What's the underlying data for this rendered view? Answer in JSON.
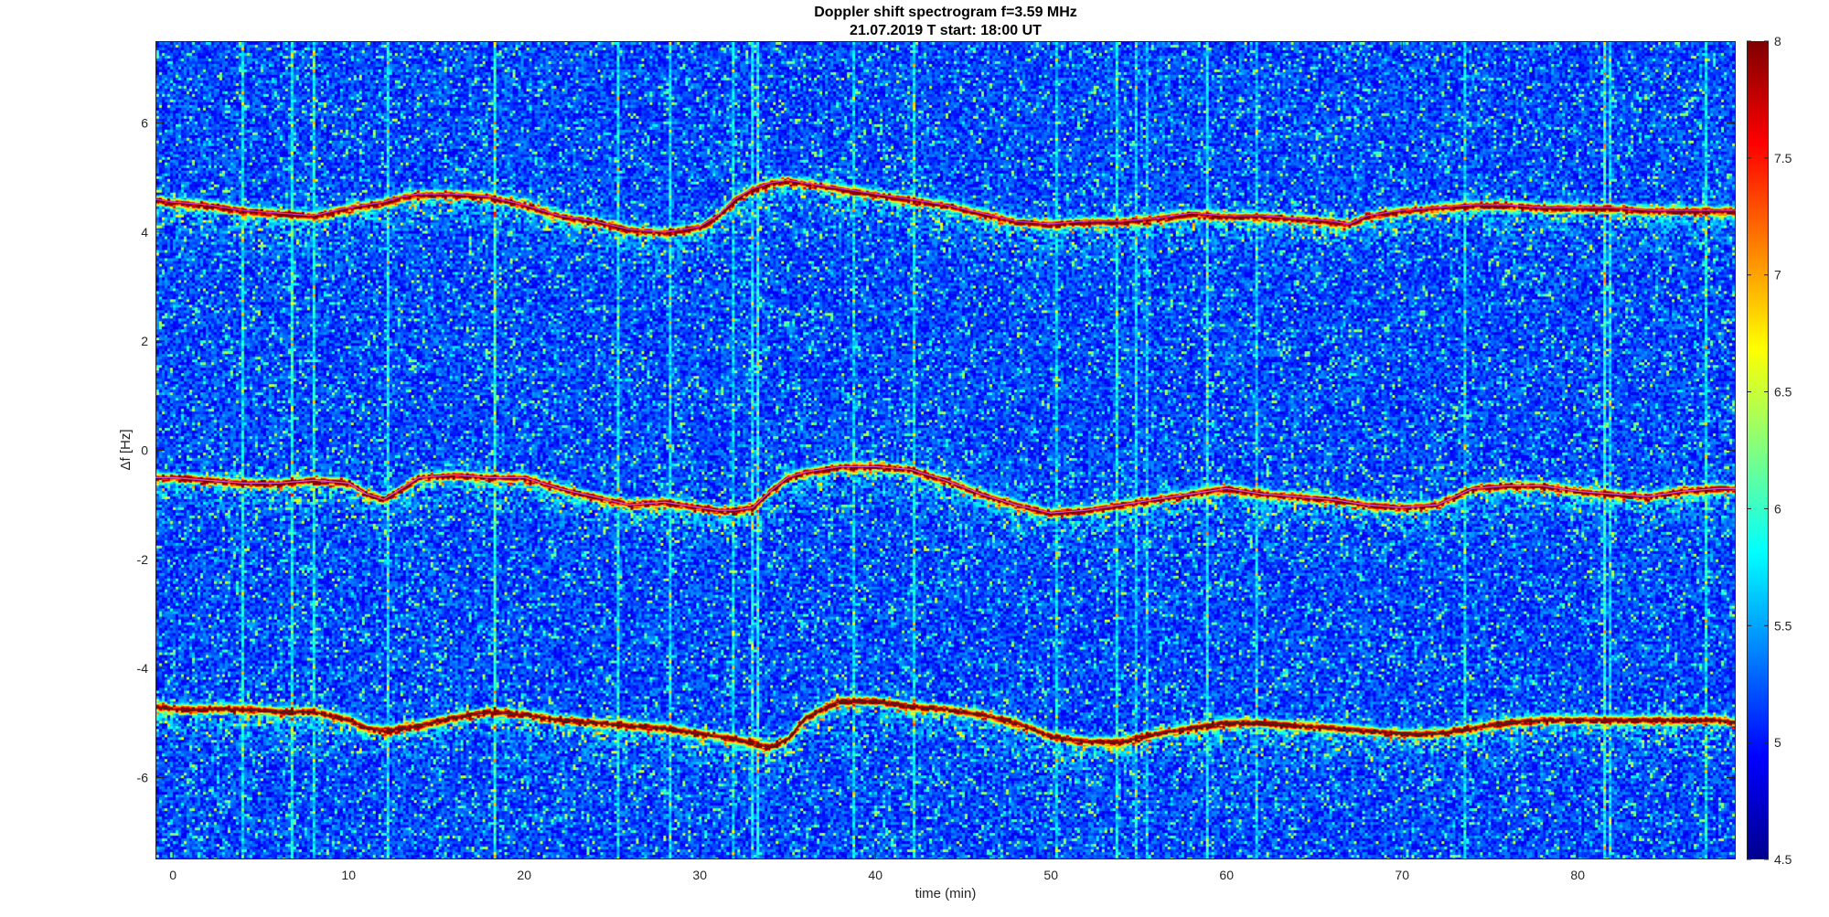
{
  "chart_data": {
    "type": "heatmap",
    "title": "Doppler shift spectrogram f=3.59 MHz",
    "subtitle": "21.07.2019    T start: 18:00 UT",
    "xlabel": "time (min)",
    "ylabel": "Δf [Hz]",
    "xlim": [
      -1,
      89
    ],
    "ylim": [
      -7.5,
      7.5
    ],
    "x_ticks": [
      0,
      10,
      20,
      30,
      40,
      50,
      60,
      70,
      80
    ],
    "y_ticks": [
      -6,
      -4,
      -2,
      0,
      2,
      4,
      6
    ],
    "colorbar": {
      "colormap": "jet",
      "range": [
        4.5,
        8
      ],
      "ticks": [
        4.5,
        5,
        5.5,
        6,
        6.5,
        7,
        7.5,
        8
      ]
    },
    "series": [
      {
        "x": [
          -1,
          0,
          2,
          4,
          6,
          8,
          10,
          11,
          12,
          13,
          14,
          16,
          18,
          20,
          22,
          24,
          26,
          28,
          30,
          31,
          32,
          33,
          34,
          35,
          36,
          38,
          40,
          42,
          44,
          46,
          48,
          50,
          52,
          54,
          56,
          58,
          60,
          62,
          64,
          66,
          67,
          68,
          70,
          72,
          74,
          76,
          78,
          80,
          82,
          84,
          86,
          88,
          89
        ],
        "y": [
          4.6,
          4.55,
          4.5,
          4.4,
          4.35,
          4.3,
          4.45,
          4.5,
          4.55,
          4.65,
          4.7,
          4.7,
          4.65,
          4.5,
          4.3,
          4.2,
          4.05,
          4.0,
          4.1,
          4.3,
          4.6,
          4.8,
          4.9,
          4.95,
          4.9,
          4.8,
          4.7,
          4.6,
          4.5,
          4.35,
          4.2,
          4.15,
          4.2,
          4.2,
          4.25,
          4.35,
          4.3,
          4.3,
          4.25,
          4.2,
          4.15,
          4.3,
          4.4,
          4.45,
          4.5,
          4.5,
          4.45,
          4.45,
          4.45,
          4.4,
          4.4,
          4.4,
          4.4
        ]
      },
      {
        "x": [
          -1,
          0,
          2,
          4,
          6,
          8,
          10,
          11,
          12,
          13,
          14,
          16,
          18,
          20,
          22,
          24,
          26,
          28,
          30,
          31,
          32,
          33,
          34,
          35,
          36,
          38,
          40,
          42,
          44,
          46,
          48,
          50,
          52,
          54,
          56,
          58,
          60,
          62,
          64,
          66,
          68,
          70,
          72,
          74,
          76,
          78,
          80,
          82,
          84,
          86,
          88,
          89
        ],
        "y": [
          -0.5,
          -0.5,
          -0.55,
          -0.6,
          -0.6,
          -0.55,
          -0.6,
          -0.8,
          -0.9,
          -0.7,
          -0.5,
          -0.45,
          -0.5,
          -0.5,
          -0.7,
          -0.85,
          -1.0,
          -0.95,
          -1.05,
          -1.1,
          -1.1,
          -1.05,
          -0.75,
          -0.5,
          -0.4,
          -0.3,
          -0.3,
          -0.35,
          -0.55,
          -0.8,
          -1.0,
          -1.15,
          -1.1,
          -1.0,
          -0.9,
          -0.8,
          -0.7,
          -0.8,
          -0.85,
          -0.9,
          -1.0,
          -1.05,
          -1.0,
          -0.7,
          -0.65,
          -0.65,
          -0.75,
          -0.8,
          -0.85,
          -0.75,
          -0.7,
          -0.7
        ]
      },
      {
        "x": [
          -1,
          0,
          2,
          4,
          6,
          8,
          10,
          11,
          12,
          14,
          16,
          18,
          20,
          22,
          24,
          26,
          28,
          30,
          32,
          34,
          35,
          36,
          38,
          40,
          42,
          44,
          46,
          48,
          50,
          52,
          54,
          56,
          58,
          60,
          62,
          64,
          66,
          68,
          70,
          72,
          74,
          76,
          78,
          80,
          82,
          84,
          86,
          88,
          89
        ],
        "y": [
          -4.7,
          -4.75,
          -4.75,
          -4.75,
          -4.8,
          -4.8,
          -4.95,
          -5.1,
          -5.15,
          -5.05,
          -4.9,
          -4.8,
          -4.85,
          -4.95,
          -5.0,
          -5.05,
          -5.1,
          -5.2,
          -5.3,
          -5.45,
          -5.3,
          -4.9,
          -4.6,
          -4.6,
          -4.7,
          -4.75,
          -4.85,
          -5.0,
          -5.25,
          -5.35,
          -5.35,
          -5.2,
          -5.1,
          -5.0,
          -5.0,
          -5.05,
          -5.1,
          -5.15,
          -5.2,
          -5.2,
          -5.1,
          -5.0,
          -4.95,
          -4.95,
          -4.95,
          -4.95,
          -4.95,
          -4.95,
          -5.0
        ]
      }
    ]
  }
}
